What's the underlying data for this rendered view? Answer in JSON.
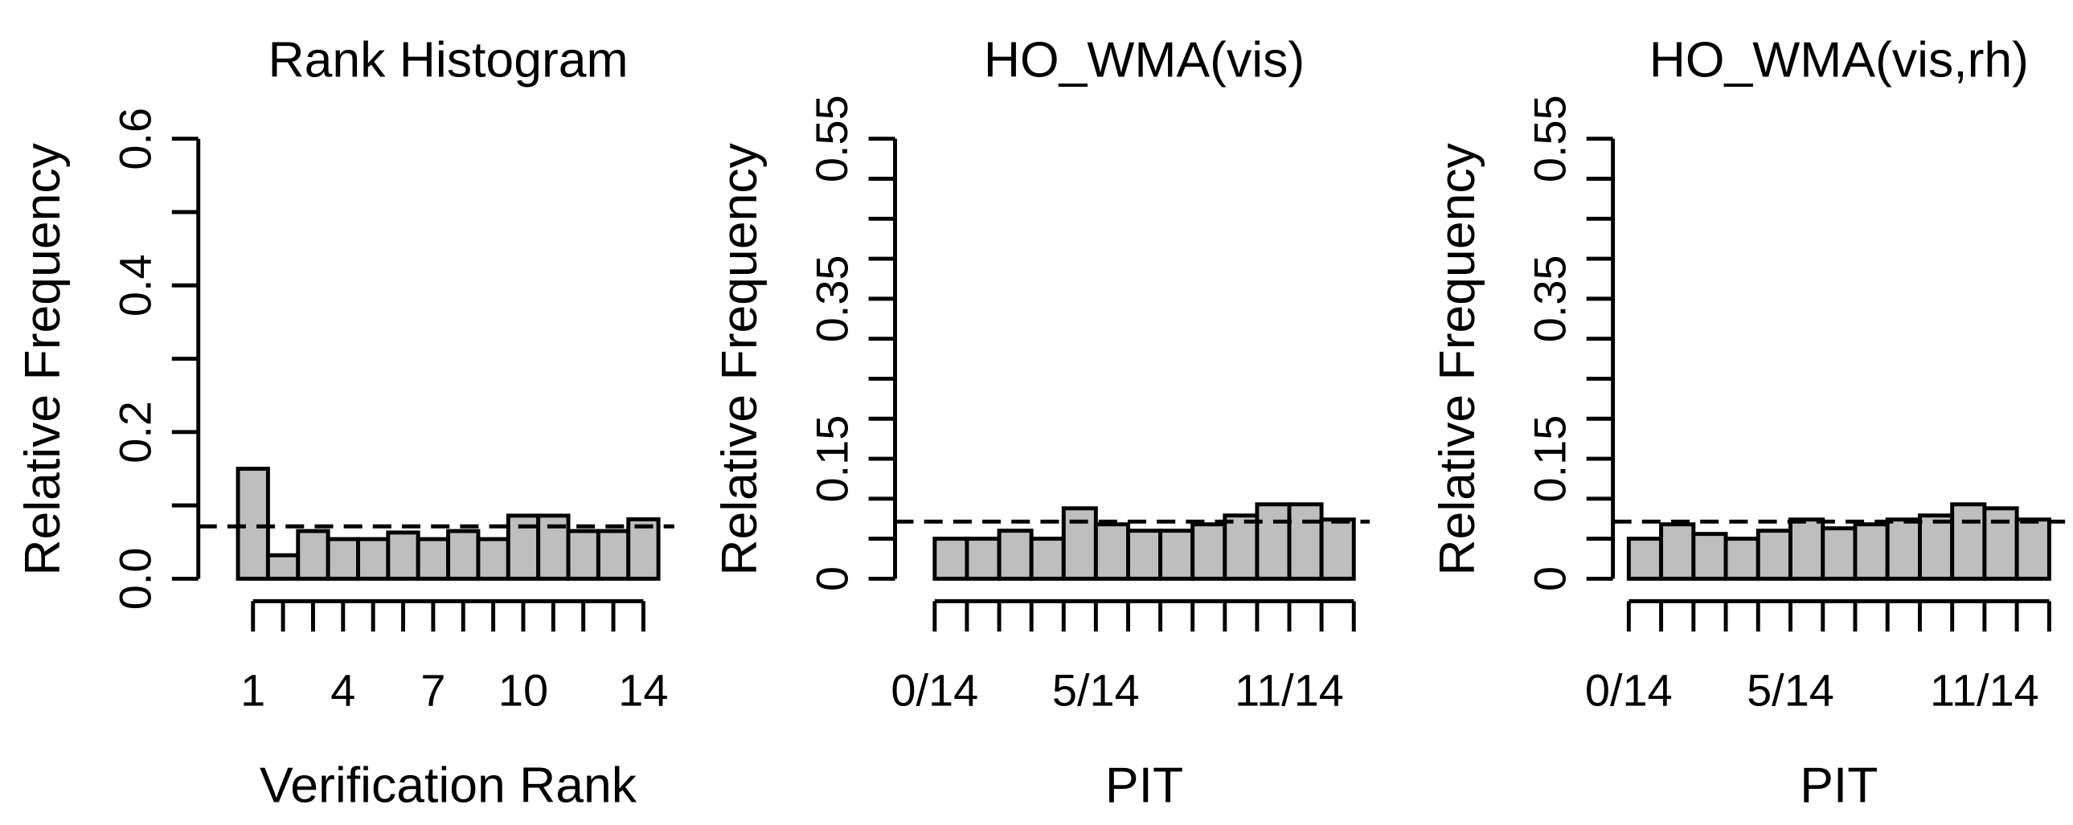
{
  "chart_data": [
    {
      "type": "bar",
      "title": "Rank Histogram",
      "x_label": "Verification Rank",
      "y_label": "Relative Frequency",
      "categories": [
        "1",
        null,
        null,
        "4",
        null,
        null,
        "7",
        null,
        null,
        "10",
        null,
        null,
        null,
        "14"
      ],
      "values": [
        0.15,
        0.032,
        0.065,
        0.054,
        0.054,
        0.063,
        0.054,
        0.065,
        0.054,
        0.086,
        0.086,
        0.065,
        0.065,
        0.081
      ],
      "color": "#bebebe",
      "reference_line": 0.0714,
      "ylim": [
        0,
        0.6
      ],
      "yticks": [
        {
          "value": 0,
          "label": "0.0"
        },
        {
          "value": 0.1,
          "label": null
        },
        0.2,
        {
          "value": 0.3,
          "label": null
        },
        0.4,
        {
          "value": 0.5,
          "label": null
        },
        0.6
      ]
    },
    {
      "type": "histogram",
      "title": "HO_WMA(vis)",
      "x_label": "PIT",
      "y_label": "Relative Frequency",
      "bins": [
        0,
        0.0714,
        0.1429,
        0.2143,
        0.2857,
        0.3571,
        0.4286,
        0.5,
        0.5714,
        0.6429,
        0.7143,
        0.7857,
        0.8571,
        0.9286
      ],
      "values": [
        0.05,
        0.05,
        0.06,
        0.05,
        0.088,
        0.068,
        0.06,
        0.06,
        0.068,
        0.079,
        0.093,
        0.093,
        0.074
      ],
      "color": "#bebebe",
      "reference_line": 0.0714,
      "xlim": [
        0,
        0.9286
      ],
      "xticks": [
        {
          "value": 0,
          "label": "0/14"
        },
        {
          "value": 0.0714,
          "label": null
        },
        {
          "value": 0.1429,
          "label": null
        },
        {
          "value": 0.2143,
          "label": null
        },
        {
          "value": 0.2857,
          "label": null
        },
        {
          "value": 0.3571,
          "label": "5/14"
        },
        {
          "value": 0.4286,
          "label": null
        },
        {
          "value": 0.5,
          "label": null
        },
        {
          "value": 0.5714,
          "label": null
        },
        {
          "value": 0.6429,
          "label": null
        },
        {
          "value": 0.7143,
          "label": null
        },
        {
          "value": 0.7857,
          "label": "11/14"
        },
        {
          "value": 0.8571,
          "label": null
        },
        {
          "value": 0.9286,
          "label": null
        }
      ],
      "ylim": [
        0,
        0.55
      ],
      "yticks": [
        0,
        {
          "value": 0.05,
          "label": null
        },
        {
          "value": 0.1,
          "label": null
        },
        0.15,
        {
          "value": 0.2,
          "label": null
        },
        {
          "value": 0.25,
          "label": null
        },
        {
          "value": 0.3,
          "label": null
        },
        0.35,
        {
          "value": 0.4,
          "label": null
        },
        {
          "value": 0.45,
          "label": null
        },
        {
          "value": 0.5,
          "label": null
        },
        0.55
      ]
    },
    {
      "type": "histogram",
      "title": "HO_WMA(vis,rh)",
      "x_label": "PIT",
      "y_label": "Relative Frequency",
      "bins": [
        0,
        0.0714,
        0.1429,
        0.2143,
        0.2857,
        0.3571,
        0.4286,
        0.5,
        0.5714,
        0.6429,
        0.7143,
        0.7857,
        0.8571,
        0.9286
      ],
      "values": [
        0.05,
        0.068,
        0.056,
        0.05,
        0.06,
        0.074,
        0.063,
        0.068,
        0.074,
        0.079,
        0.093,
        0.088,
        0.074
      ],
      "color": "#bebebe",
      "reference_line": 0.0714,
      "xlim": [
        0,
        0.9286
      ],
      "xticks": [
        {
          "value": 0,
          "label": "0/14"
        },
        {
          "value": 0.0714,
          "label": null
        },
        {
          "value": 0.1429,
          "label": null
        },
        {
          "value": 0.2143,
          "label": null
        },
        {
          "value": 0.2857,
          "label": null
        },
        {
          "value": 0.3571,
          "label": "5/14"
        },
        {
          "value": 0.4286,
          "label": null
        },
        {
          "value": 0.5,
          "label": null
        },
        {
          "value": 0.5714,
          "label": null
        },
        {
          "value": 0.6429,
          "label": null
        },
        {
          "value": 0.7143,
          "label": null
        },
        {
          "value": 0.7857,
          "label": "11/14"
        },
        {
          "value": 0.8571,
          "label": null
        },
        {
          "value": 0.9286,
          "label": null
        }
      ],
      "ylim": [
        0,
        0.55
      ],
      "yticks": [
        0,
        {
          "value": 0.05,
          "label": null
        },
        {
          "value": 0.1,
          "label": null
        },
        0.15,
        {
          "value": 0.2,
          "label": null
        },
        {
          "value": 0.25,
          "label": null
        },
        {
          "value": 0.3,
          "label": null
        },
        0.35,
        {
          "value": 0.4,
          "label": null
        },
        {
          "value": 0.45,
          "label": null
        },
        {
          "value": 0.5,
          "label": null
        },
        0.55
      ]
    }
  ]
}
